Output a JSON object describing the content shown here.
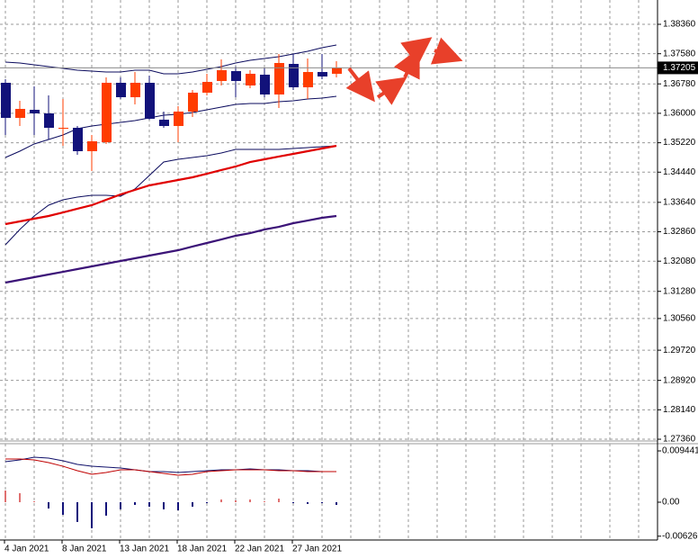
{
  "chart_data": [
    {
      "type": "candlestick",
      "categories": [
        "4 Jan 2021",
        null,
        null,
        null,
        "8 Jan 2021",
        null,
        null,
        null,
        "13 Jan 2021",
        null,
        null,
        null,
        "18 Jan 2021",
        null,
        null,
        null,
        "22 Jan 2021",
        null,
        null,
        null,
        "27 Jan 2021",
        null,
        null,
        null
      ],
      "open": [
        1.36809,
        1.35879,
        1.36093,
        1.35998,
        1.35592,
        1.35616,
        1.34996,
        1.35234,
        1.36809,
        1.36427,
        1.36809,
        1.35831,
        1.35664,
        1.36046,
        1.36547,
        1.36857,
        1.37119,
        1.36738,
        1.37024,
        1.36499,
        1.3731,
        1.3669,
        1.37095,
        1.37048
      ],
      "high": [
        1.36905,
        1.36332,
        1.36714,
        1.36475,
        1.3638,
        1.35664,
        1.35425,
        1.36952,
        1.36952,
        1.37095,
        1.37,
        1.36046,
        1.36189,
        1.36618,
        1.37048,
        1.37429,
        1.37239,
        1.37143,
        1.37215,
        1.37573,
        1.37573,
        1.37453,
        1.37573,
        1.37382
      ],
      "low": [
        1.35425,
        1.35664,
        1.35425,
        1.35306,
        1.35139,
        1.349,
        1.34471,
        1.35187,
        1.3638,
        1.36236,
        1.35831,
        1.35616,
        1.35234,
        1.35902,
        1.36475,
        1.36738,
        1.36427,
        1.36666,
        1.36427,
        1.36141,
        1.36618,
        1.3638,
        1.36905,
        1.36952
      ],
      "close": [
        1.35879,
        1.36117,
        1.35998,
        1.35616,
        1.35616,
        1.34996,
        1.35258,
        1.36809,
        1.36427,
        1.36809,
        1.35855,
        1.35664,
        1.36046,
        1.36547,
        1.36833,
        1.37143,
        1.36857,
        1.37048,
        1.36499,
        1.37334,
        1.3669,
        1.37095,
        1.36976,
        1.37205
      ],
      "up_color": "#ff3c00",
      "down_color": "#12127a",
      "lines": [
        {
          "color": "#0b0b5e",
          "values": [
            1.37358,
            1.37334,
            1.37286,
            1.37239,
            1.37191,
            1.37143,
            1.37119,
            1.37095,
            1.37095,
            1.37143,
            1.37143,
            1.37048,
            1.37048,
            1.37095,
            1.37167,
            1.37239,
            1.37334,
            1.37406,
            1.37453,
            1.37501,
            1.37573,
            1.37644,
            1.3774,
            1.37811
          ]
        },
        {
          "color": "#0b0b5e",
          "values": [
            1.34829,
            1.34996,
            1.35187,
            1.35306,
            1.35425,
            1.35592,
            1.35664,
            1.35712,
            1.35759,
            1.35807,
            1.35879,
            1.3595,
            1.35974,
            1.36022,
            1.36093,
            1.36165,
            1.36236,
            1.3626,
            1.3626,
            1.36308,
            1.36332,
            1.3638,
            1.36404,
            1.36451
          ]
        },
        {
          "color": "#0b0b5e",
          "values": [
            1.32514,
            1.3292,
            1.33278,
            1.33564,
            1.33707,
            1.33779,
            1.33827,
            1.33827,
            1.33803,
            1.33994,
            1.34352,
            1.34709,
            1.34781,
            1.34829,
            1.34876,
            1.34948,
            1.35043,
            1.35043,
            1.35043,
            1.35043,
            1.35067,
            1.35091,
            1.35115,
            1.35139
          ]
        },
        {
          "color": "#e00000",
          "thick": true,
          "values": [
            1.33063,
            1.33135,
            1.33206,
            1.33278,
            1.33373,
            1.33469,
            1.33564,
            1.33707,
            1.3385,
            1.3397,
            1.34089,
            1.34161,
            1.34232,
            1.34304,
            1.34399,
            1.34495,
            1.3459,
            1.34709,
            1.34781,
            1.34853,
            1.34924,
            1.34996,
            1.35067,
            1.35139
          ]
        },
        {
          "color": "#3c1478",
          "thick": true,
          "values": [
            1.31512,
            1.31584,
            1.31655,
            1.31727,
            1.31798,
            1.3187,
            1.31942,
            1.32013,
            1.32085,
            1.32156,
            1.32228,
            1.323,
            1.32371,
            1.32467,
            1.32562,
            1.32657,
            1.32753,
            1.32824,
            1.3292,
            1.32991,
            1.33087,
            1.33158,
            1.3323,
            1.33278
          ]
        }
      ],
      "current_price": 1.37205,
      "ylim": [
        1.27313,
        1.39004
      ],
      "yticks": [
        {
          "value": 1.3836,
          "label": "1.38360"
        },
        {
          "value": 1.3758,
          "label": "1.37580"
        },
        {
          "value": 1.3678,
          "label": "1.36780"
        },
        {
          "value": 1.36,
          "label": "1.36000"
        },
        {
          "value": 1.3522,
          "label": "1.35220"
        },
        {
          "value": 1.3444,
          "label": "1.34440"
        },
        {
          "value": 1.3364,
          "label": "1.33640"
        },
        {
          "value": 1.3286,
          "label": "1.32860"
        },
        {
          "value": 1.3208,
          "label": "1.32080"
        },
        {
          "value": 1.3128,
          "label": "1.31280"
        },
        {
          "value": 1.3056,
          "label": "1.30560"
        },
        {
          "value": 1.2972,
          "label": "1.29720"
        },
        {
          "value": 1.2892,
          "label": "1.28920"
        },
        {
          "value": 1.2814,
          "label": "1.28140"
        },
        {
          "value": 1.2736,
          "label": "1.27360"
        }
      ],
      "grid": true
    },
    {
      "type": "macd",
      "values": [
        0.00215,
        0.00166,
        0.00017,
        -0.00116,
        -0.00232,
        -0.00364,
        -0.0048,
        -0.00248,
        -0.00132,
        -0.0005,
        -0.00083,
        -0.00132,
        -0.00149,
        -0.00083,
        -0.00017,
        0.0005,
        0.00033,
        0.0005,
        0.00017,
        0.00066,
        -0.00017,
        -0.00033,
        -0.00017,
        -0.0005
      ],
      "positive_color": "#e07070",
      "negative_color": "#12127a",
      "series": [
        {
          "color": "#10106a",
          "values": [
            0.00745,
            0.00778,
            0.00828,
            0.00811,
            0.00762,
            0.00696,
            0.00662,
            0.00646,
            0.00629,
            0.00596,
            0.00563,
            0.00563,
            0.00546,
            0.00563,
            0.0058,
            0.00596,
            0.00596,
            0.00613,
            0.00596,
            0.00596,
            0.0058,
            0.0058,
            0.00563,
            0.00563
          ]
        },
        {
          "color": "#c00000",
          "values": [
            0.00795,
            0.00795,
            0.00778,
            0.00729,
            0.00662,
            0.0058,
            0.00513,
            0.00546,
            0.00596,
            0.00596,
            0.00563,
            0.0053,
            0.00497,
            0.00513,
            0.00563,
            0.0058,
            0.00596,
            0.00596,
            0.00596,
            0.0058,
            0.0058,
            0.00563,
            0.00563,
            0.00563
          ]
        }
      ],
      "ylim": [
        -0.00696,
        0.01077
      ],
      "yticks": [
        0.0094415,
        {
          "value": 0,
          "label": "0.00"
        },
        {
          "value": -0.00626,
          "label": "-0.006260"
        }
      ]
    }
  ]
}
